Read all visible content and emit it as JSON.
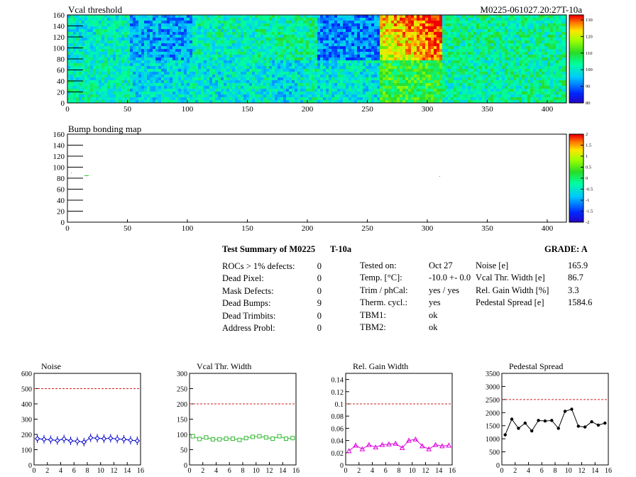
{
  "module_id": "M0225-061027.20:27T-10a",
  "maps": {
    "vcal": {
      "title": "Vcal threshold",
      "xticks": [
        0,
        50,
        100,
        150,
        200,
        250,
        300,
        350,
        400
      ],
      "yticks": [
        0,
        20,
        40,
        60,
        80,
        100,
        120,
        140,
        160
      ],
      "xrange": [
        0,
        416
      ],
      "yrange": [
        0,
        160
      ],
      "colorbar_ticks": [
        "80",
        "90",
        "100",
        "110",
        "120",
        "130"
      ],
      "colorbar_range": [
        80,
        133
      ]
    },
    "bump": {
      "title": "Bump bonding map",
      "xticks": [
        0,
        50,
        100,
        150,
        200,
        250,
        300,
        350,
        400
      ],
      "yticks": [
        0,
        20,
        40,
        60,
        80,
        100,
        120,
        140,
        160
      ],
      "xrange": [
        0,
        416
      ],
      "yrange": [
        0,
        160
      ],
      "colorbar_ticks": [
        "2",
        "1.5",
        "1",
        "0.5",
        "0",
        "-0.5",
        "-1",
        "-1.5",
        "-2"
      ],
      "colorbar_range": [
        -2,
        2
      ]
    }
  },
  "summary": {
    "title": "Test Summary of M0225",
    "temp_label": "T-10a",
    "grade": "GRADE:  A",
    "defects": [
      {
        "label": "ROCs > 1% defects:",
        "value": "0"
      },
      {
        "label": "Dead Pixel:",
        "value": "0"
      },
      {
        "label": "Mask Defects:",
        "value": "0"
      },
      {
        "label": "Dead Bumps:",
        "value": "9"
      },
      {
        "label": "Dead Trimbits:",
        "value": "0"
      },
      {
        "label": "Address Probl:",
        "value": "0"
      }
    ],
    "tests": [
      {
        "label": "Tested on:",
        "value": "Oct 27"
      },
      {
        "label": "Temp. [°C]:",
        "value": "-10.0 +- 0.0"
      },
      {
        "label": "Trim / phCal:",
        "value": "yes / yes"
      },
      {
        "label": "Therm. cycl.:",
        "value": "yes"
      },
      {
        "label": "TBM1:",
        "value": "ok"
      },
      {
        "label": "TBM2:",
        "value": "ok"
      }
    ],
    "params": [
      {
        "label": "Noise [e]",
        "value": "165.9"
      },
      {
        "label": "Vcal Thr. Width [e]",
        "value": "86.7"
      },
      {
        "label": "Rel. Gain Width [%]",
        "value": "3.3"
      },
      {
        "label": "Pedestal Spread [e]",
        "value": "1584.6"
      }
    ]
  },
  "chart_data": [
    {
      "type": "line",
      "title": "Noise",
      "x": [
        0,
        1,
        2,
        3,
        4,
        5,
        6,
        7,
        8,
        9,
        10,
        11,
        12,
        13,
        14,
        15
      ],
      "values": [
        172,
        168,
        165,
        160,
        170,
        158,
        155,
        150,
        178,
        175,
        172,
        175,
        170,
        168,
        162,
        158
      ],
      "ylim": [
        0,
        600
      ],
      "yticks": [
        0,
        100,
        200,
        300,
        400,
        500,
        600
      ],
      "xticks": [
        0,
        2,
        4,
        6,
        8,
        10,
        12,
        14,
        16
      ],
      "xlim": [
        0,
        16
      ],
      "limit_line": 500,
      "color": "#0000cc",
      "marker": "diamond",
      "error_bars": true
    },
    {
      "type": "line",
      "title": "Vcal Thr. Width",
      "x": [
        0,
        1,
        2,
        3,
        4,
        5,
        6,
        7,
        8,
        9,
        10,
        11,
        12,
        13,
        14,
        15
      ],
      "values": [
        94,
        85,
        90,
        84,
        84,
        86,
        86,
        82,
        88,
        92,
        94,
        90,
        86,
        94,
        86,
        88
      ],
      "ylim": [
        0,
        300
      ],
      "yticks": [
        0,
        50,
        100,
        150,
        200,
        250,
        300
      ],
      "xticks": [
        0,
        2,
        4,
        6,
        8,
        10,
        12,
        14,
        16
      ],
      "xlim": [
        0,
        16
      ],
      "limit_line": 200,
      "color": "#33bb33",
      "marker": "square"
    },
    {
      "type": "line",
      "title": "Rel. Gain Width",
      "x": [
        0,
        1,
        2,
        3,
        4,
        5,
        6,
        7,
        8,
        9,
        10,
        11,
        12,
        13,
        14,
        15
      ],
      "values": [
        0.023,
        0.032,
        0.026,
        0.033,
        0.029,
        0.033,
        0.034,
        0.035,
        0.028,
        0.04,
        0.042,
        0.031,
        0.026,
        0.033,
        0.031,
        0.032
      ],
      "ylim": [
        0,
        0.15
      ],
      "yticks": [
        0,
        0.02,
        0.04,
        0.06,
        0.08,
        0.1,
        0.12,
        0.14
      ],
      "xticks": [
        0,
        2,
        4,
        6,
        8,
        10,
        12,
        14,
        16
      ],
      "xlim": [
        0,
        16
      ],
      "limit_line": 0.1,
      "color": "#dd00dd",
      "marker": "triangle"
    },
    {
      "type": "line",
      "title": "Pedestal Spread",
      "x": [
        0,
        1,
        2,
        3,
        4,
        5,
        6,
        7,
        8,
        9,
        10,
        11,
        12,
        13,
        14,
        15
      ],
      "values": [
        1150,
        1750,
        1400,
        1600,
        1300,
        1700,
        1680,
        1700,
        1400,
        2050,
        2130,
        1480,
        1450,
        1650,
        1520,
        1600
      ],
      "ylim": [
        0,
        3500
      ],
      "yticks": [
        0,
        500,
        1000,
        1500,
        2000,
        2500,
        3000,
        3500
      ],
      "xticks": [
        0,
        2,
        4,
        6,
        8,
        10,
        12,
        14,
        16
      ],
      "xlim": [
        0,
        16
      ],
      "limit_line": 2500,
      "color": "#000000",
      "marker": "circle"
    }
  ]
}
